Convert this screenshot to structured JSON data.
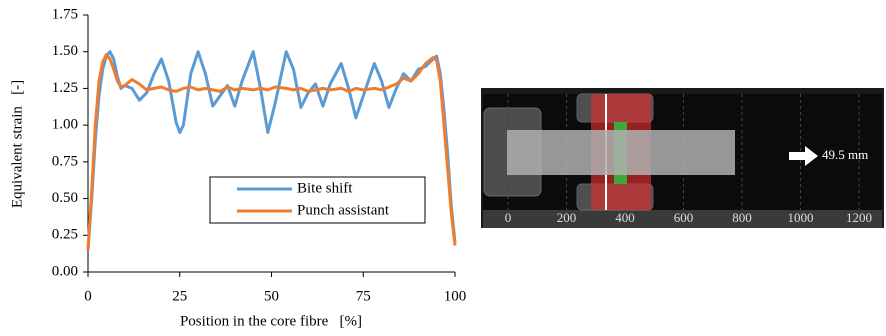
{
  "chart_data": {
    "type": "line",
    "x_label": "Position in the core fibre   [%]",
    "y_label": "Equivalent strain   [-]",
    "x": [
      0,
      1,
      2,
      3,
      4,
      5,
      6,
      7,
      8,
      9,
      10,
      12,
      14,
      16,
      18,
      20,
      22,
      24,
      25,
      26,
      28,
      30,
      32,
      34,
      36,
      38,
      40,
      42,
      45,
      47,
      49,
      51,
      54,
      56,
      58,
      60,
      62,
      64,
      66,
      69,
      71,
      73,
      75,
      78,
      80,
      82,
      84,
      86,
      88,
      90,
      92,
      94,
      95,
      96,
      97,
      98,
      99,
      100
    ],
    "series": [
      {
        "name": "Bite shift",
        "color": "#5b9bd5",
        "values": [
          0.15,
          0.5,
          0.9,
          1.2,
          1.38,
          1.47,
          1.5,
          1.45,
          1.33,
          1.25,
          1.27,
          1.25,
          1.17,
          1.22,
          1.35,
          1.45,
          1.3,
          1.02,
          0.95,
          1.0,
          1.35,
          1.5,
          1.35,
          1.13,
          1.2,
          1.27,
          1.13,
          1.3,
          1.5,
          1.25,
          0.95,
          1.15,
          1.5,
          1.38,
          1.12,
          1.22,
          1.28,
          1.13,
          1.28,
          1.42,
          1.25,
          1.05,
          1.2,
          1.42,
          1.3,
          1.12,
          1.25,
          1.35,
          1.3,
          1.38,
          1.4,
          1.45,
          1.47,
          1.35,
          1.1,
          0.8,
          0.45,
          0.2
        ]
      },
      {
        "name": "Punch assistant",
        "color": "#ed7d31",
        "values": [
          0.15,
          0.55,
          1.0,
          1.3,
          1.43,
          1.48,
          1.45,
          1.38,
          1.3,
          1.26,
          1.27,
          1.31,
          1.28,
          1.24,
          1.25,
          1.26,
          1.24,
          1.23,
          1.24,
          1.25,
          1.26,
          1.24,
          1.25,
          1.24,
          1.23,
          1.26,
          1.24,
          1.25,
          1.24,
          1.25,
          1.24,
          1.26,
          1.25,
          1.24,
          1.25,
          1.23,
          1.24,
          1.25,
          1.24,
          1.25,
          1.23,
          1.25,
          1.24,
          1.25,
          1.24,
          1.26,
          1.28,
          1.32,
          1.3,
          1.35,
          1.42,
          1.46,
          1.44,
          1.3,
          1.0,
          0.7,
          0.4,
          0.18
        ]
      }
    ],
    "xlim": [
      0,
      100
    ],
    "xticks": [
      0,
      25,
      50,
      75,
      100
    ],
    "ylim": [
      0,
      1.75
    ],
    "yticks": [
      {
        "value": 0,
        "label": "0.00"
      },
      0.25,
      {
        "value": 0.5,
        "label": "0.50"
      },
      0.75,
      {
        "value": 1,
        "label": "1.00"
      },
      1.25,
      {
        "value": 1.5,
        "label": "1.50"
      },
      1.75
    ],
    "legend": "lower right"
  },
  "panel": {
    "ticks": [
      0,
      200,
      400,
      600,
      800,
      1000,
      1200
    ],
    "annotation": "49.5 mm"
  }
}
